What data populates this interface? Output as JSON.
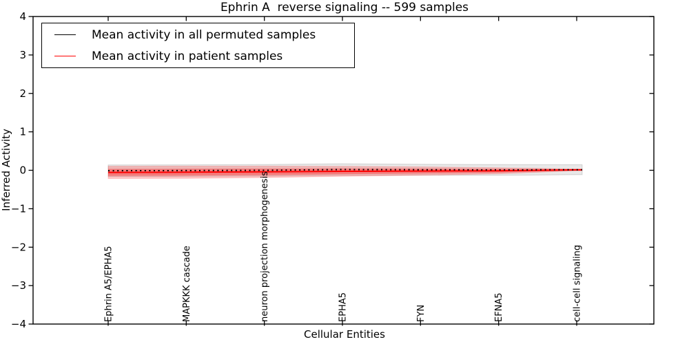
{
  "figure": {
    "background": "#ffffff"
  },
  "chart_data": {
    "type": "line",
    "title": "Ephrin A  reverse signaling -- 599 samples",
    "xlabel": "Cellular Entities",
    "ylabel": "Inferred Activity",
    "ylim": [
      -4,
      4
    ],
    "yticks": [
      4,
      3,
      2,
      1,
      0,
      -1,
      -2,
      -3,
      -4
    ],
    "grid": false,
    "categories": [
      "Ephrin A5/EPHA5",
      "MAPKKK cascade",
      "neuron projection morphogenesis",
      "EPHA5",
      "FYN",
      "EFNA5",
      "cell-cell signaling"
    ],
    "legend": {
      "position": "upper left",
      "entries": [
        {
          "label": "Mean activity in all permuted samples",
          "color": "#000000"
        },
        {
          "label": "Mean activity in patient samples",
          "color": "#ff0000"
        }
      ]
    },
    "series": [
      {
        "name": "Mean activity in all permuted samples",
        "color": "#000000",
        "linestyle": "dotted",
        "values": [
          -0.01,
          -0.008,
          0.0,
          0.02,
          0.015,
          0.01,
          0.015
        ],
        "band": {
          "color": "#000000",
          "alpha": 0.09,
          "edge_alpha": 0.14,
          "halfwidths": [
            0.15,
            0.15,
            0.15,
            0.15,
            0.14,
            0.14,
            0.13
          ]
        }
      },
      {
        "name": "Mean activity in patient samples",
        "color": "#ff0000",
        "linestyle": "solid",
        "values": [
          -0.055,
          -0.05,
          -0.04,
          -0.027,
          -0.02,
          -0.012,
          0.01
        ],
        "bands": [
          {
            "color": "#ff0000",
            "alpha": 0.22,
            "halfwidths": [
              0.16,
              0.16,
              0.15,
              0.13,
              0.11,
              0.08,
              0.025
            ]
          },
          {
            "color": "#ff0000",
            "alpha": 0.32,
            "halfwidths": [
              0.09,
              0.09,
              0.085,
              0.075,
              0.065,
              0.05,
              0.015
            ]
          }
        ]
      }
    ]
  }
}
